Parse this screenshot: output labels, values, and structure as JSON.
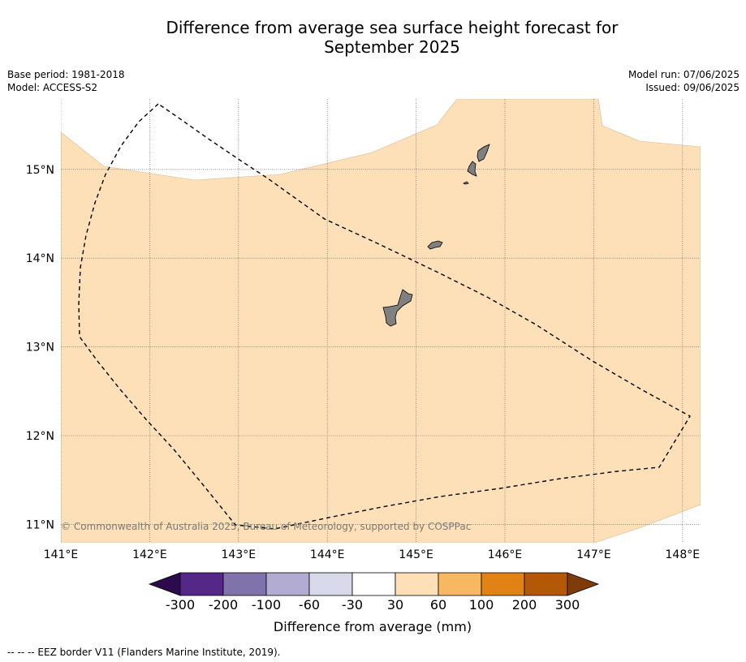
{
  "title": {
    "line1": "Difference from average sea surface height forecast for",
    "line2": "September 2025"
  },
  "meta": {
    "base_period": "Base period: 1981-2018",
    "model": "Model: ACCESS-S2",
    "model_run": "Model run: 07/06/2025",
    "issued": "Issued: 09/06/2025"
  },
  "map": {
    "lon_range": [
      141.0,
      148.2
    ],
    "lat_range": [
      10.8,
      15.8
    ],
    "lon_ticks": [
      {
        "value": 141,
        "label": "141°E"
      },
      {
        "value": 142,
        "label": "142°E"
      },
      {
        "value": 143,
        "label": "143°E"
      },
      {
        "value": 144,
        "label": "144°E"
      },
      {
        "value": 145,
        "label": "145°E"
      },
      {
        "value": 146,
        "label": "146°E"
      },
      {
        "value": 147,
        "label": "147°E"
      },
      {
        "value": 148,
        "label": "148°E"
      }
    ],
    "lat_ticks": [
      {
        "value": 15,
        "label": "15°N"
      },
      {
        "value": 14,
        "label": "14°N"
      },
      {
        "value": 13,
        "label": "13°N"
      },
      {
        "value": 12,
        "label": "12°N"
      },
      {
        "value": 11,
        "label": "11°N"
      }
    ],
    "gridlines": true,
    "copyright": "© Commonwealth of Australia 2025, Bureau of Meteorology, supported by COSPPac",
    "anomaly_bin_shown": "30 to 60 mm",
    "colors": {
      "anomaly_30_60": "#fde0b7",
      "land": "#808080",
      "eez_border": "#000000"
    }
  },
  "colorbar": {
    "title": "Difference from average (mm)",
    "labels": [
      "-300",
      "-200",
      "-100",
      "-60",
      "-30",
      "30",
      "60",
      "100",
      "200",
      "300"
    ],
    "under_color": "#2d0a4b",
    "over_color": "#7f3b08",
    "colors": [
      "#542788",
      "#8073ac",
      "#b2abd2",
      "#d8daeb",
      "#ffffff",
      "#fde0b7",
      "#f8b862",
      "#e08214",
      "#b35806"
    ]
  },
  "footnote": "--  --  -- EEZ border V11 (Flanders Marine Institute, 2019)."
}
